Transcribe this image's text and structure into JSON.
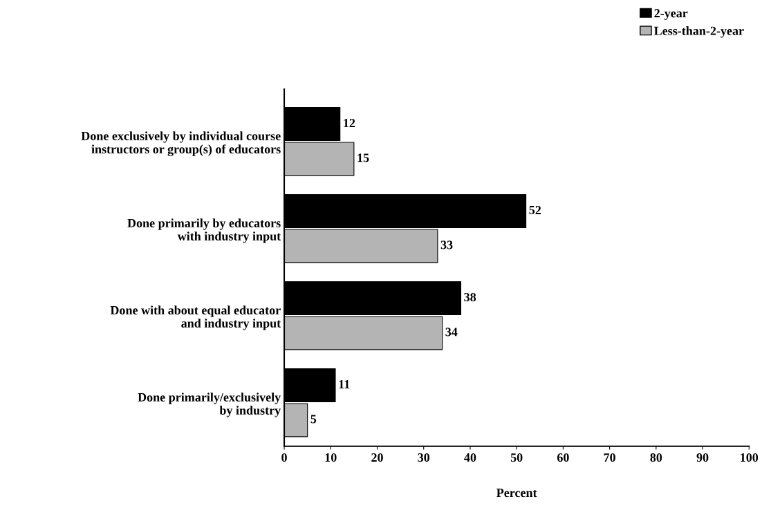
{
  "chart_data": {
    "type": "bar",
    "orientation": "horizontal",
    "xlabel": "Percent",
    "categories": [
      "Done exclusively by individual course\ninstructors or group(s) of educators",
      "Done primarily by educators\nwith industry input",
      "Done with about equal educator\nand industry input",
      "Done primarily/exclusively\nby industry"
    ],
    "series": [
      {
        "name": "2-year",
        "color": "#000000",
        "values": [
          12,
          52,
          38,
          11
        ]
      },
      {
        "name": "Less-than-2-year",
        "color": "#b4b4b4",
        "values": [
          15,
          33,
          34,
          5
        ]
      }
    ],
    "xlim": [
      0,
      100
    ],
    "xticks": [
      0,
      10,
      20,
      30,
      40,
      50,
      60,
      70,
      80,
      90,
      100
    ],
    "data_labels": true,
    "legend": "top right",
    "grid": false
  }
}
